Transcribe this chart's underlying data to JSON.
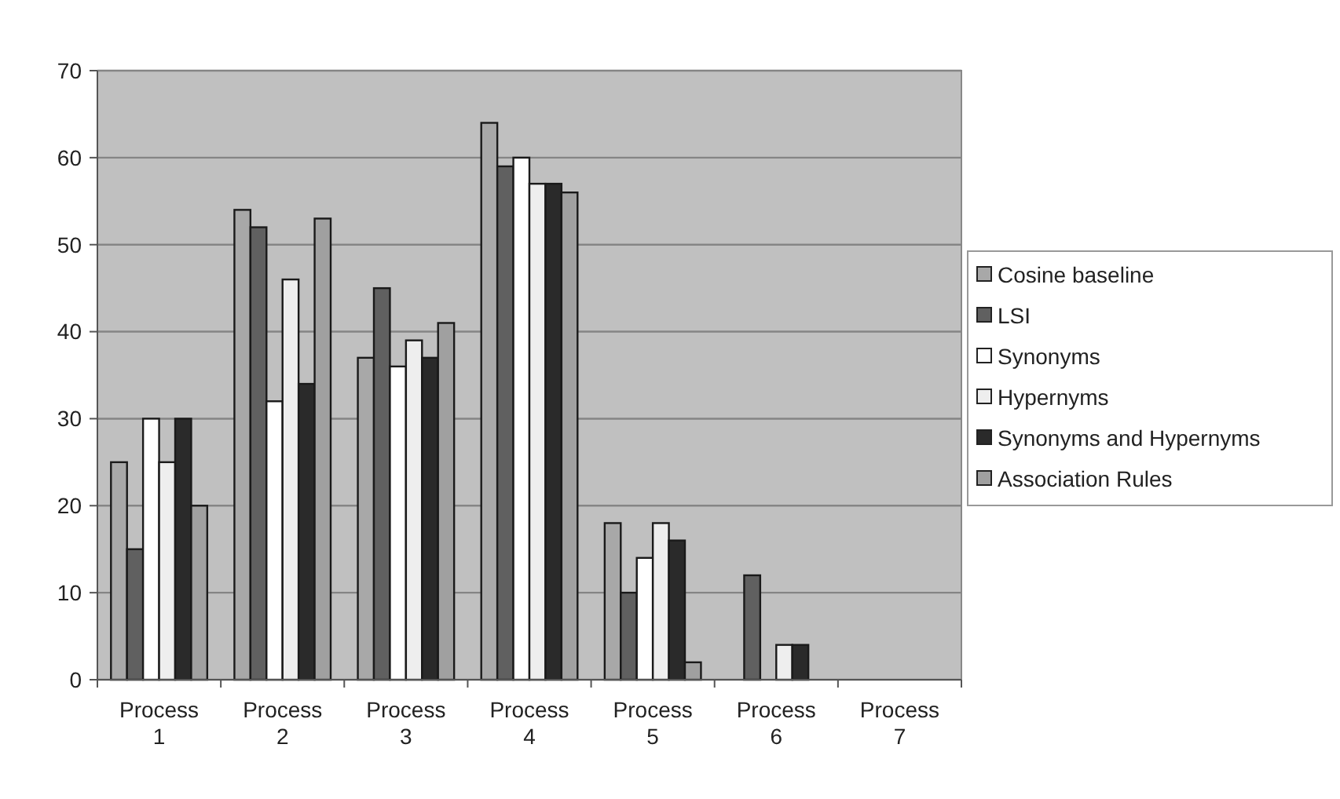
{
  "chart_data": {
    "type": "bar",
    "categories": [
      "Process 1",
      "Process 2",
      "Process 3",
      "Process 4",
      "Process 5",
      "Process 6",
      "Process 7"
    ],
    "series": [
      {
        "name": "Cosine baseline",
        "color": "#a8a8a8",
        "values": [
          25,
          54,
          37,
          64,
          18,
          0,
          0
        ]
      },
      {
        "name": "LSI",
        "color": "#606060",
        "values": [
          15,
          52,
          45,
          59,
          10,
          12,
          0
        ]
      },
      {
        "name": "Synonyms",
        "color": "#ffffff",
        "values": [
          30,
          32,
          36,
          60,
          14,
          0,
          0
        ]
      },
      {
        "name": "Hypernyms",
        "color": "#eeeeee",
        "values": [
          25,
          46,
          39,
          57,
          18,
          4,
          0
        ]
      },
      {
        "name": "Synonyms and Hypernyms",
        "color": "#2a2a2a",
        "values": [
          30,
          34,
          37,
          57,
          16,
          4,
          0
        ]
      },
      {
        "name": "Association Rules",
        "color": "#a0a0a0",
        "values": [
          20,
          53,
          41,
          56,
          2,
          0,
          0
        ]
      }
    ],
    "ylim": [
      0,
      70
    ],
    "yticks": [
      0,
      10,
      20,
      30,
      40,
      50,
      60,
      70
    ],
    "grid": "y",
    "legend": "right"
  }
}
